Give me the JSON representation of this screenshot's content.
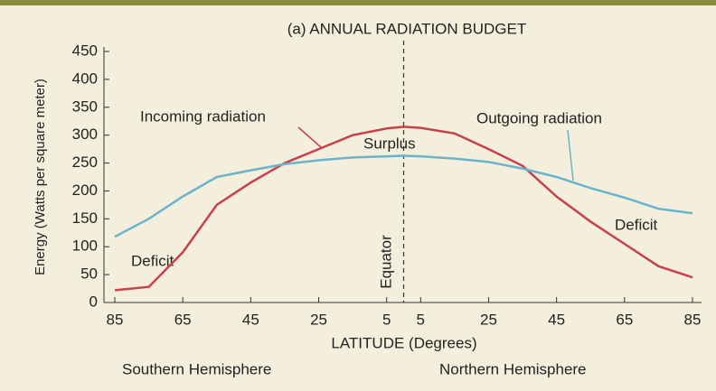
{
  "chart_data": {
    "type": "line",
    "title": "(a) ANNUAL RADIATION BUDGET",
    "ylabel": "Energy (Watts per square meter)",
    "xlabel": "LATITUDE (Degrees)",
    "annotations": [
      "Incoming radiation",
      "Outgoing radiation",
      "Surplus",
      "Deficit",
      "Deficit",
      "Equator",
      "Southern Hemisphere",
      "Northern Hemisphere"
    ],
    "xlim": [
      -85,
      85
    ],
    "xticks": [
      {
        "value": -85,
        "label": "85"
      },
      {
        "value": -65,
        "label": "65"
      },
      {
        "value": -45,
        "label": "45"
      },
      {
        "value": -25,
        "label": "25"
      },
      {
        "value": -5,
        "label": "5"
      },
      5,
      25,
      45,
      65,
      85
    ],
    "ylim": [
      0,
      450
    ],
    "yticks": [
      0,
      50,
      100,
      150,
      200,
      250,
      300,
      350,
      400,
      450
    ],
    "grid": false,
    "x": [
      -85,
      -75,
      -65,
      -55,
      -45,
      -35,
      -25,
      -15,
      -5,
      0,
      5,
      15,
      25,
      35,
      45,
      55,
      65,
      75,
      85
    ],
    "series": [
      {
        "name": "Incoming radiation",
        "color": "#c8404a",
        "values": [
          22,
          28,
          90,
          175,
          215,
          250,
          275,
          300,
          312,
          315,
          313,
          303,
          275,
          245,
          190,
          145,
          105,
          65,
          45
        ]
      },
      {
        "name": "Outgoing radiation",
        "color": "#6bb3cc",
        "values": [
          118,
          150,
          190,
          225,
          237,
          248,
          255,
          260,
          262,
          263,
          262,
          258,
          252,
          240,
          225,
          205,
          188,
          168,
          160
        ]
      }
    ]
  }
}
